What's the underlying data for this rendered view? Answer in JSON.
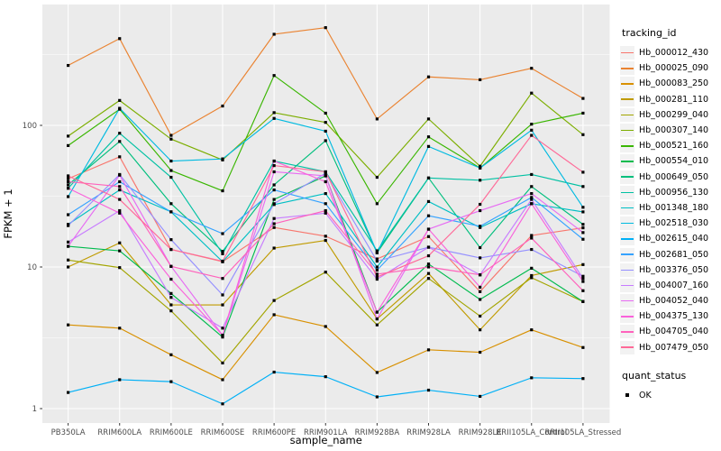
{
  "figure": {
    "y_axis": {
      "title": "FPKM + 1",
      "tick_labels": [
        "1",
        "10",
        "100"
      ]
    },
    "x_axis": {
      "title": "sample_name"
    },
    "legend": {
      "tracking_title": "tracking_id",
      "quant_title": "quant_status",
      "quant_items": [
        {
          "label": "OK",
          "marker": "black-square"
        }
      ]
    },
    "colors": {
      "panel_bg": "#EBEBEB",
      "grid": "#FFFFFF",
      "axis_text": "#4D4D4D",
      "axis_title": "#000000",
      "tick_mark": "#333333",
      "point": "#000000",
      "legend_key_bg": "#F2F2F2"
    }
  },
  "chart_data": {
    "type": "line",
    "title": "",
    "xlabel": "sample_name",
    "ylabel": "FPKM + 1",
    "y_scale": "log10",
    "y_ticks": [
      1,
      10,
      100
    ],
    "y_minor_ticks": [
      3.162,
      31.62,
      316.2
    ],
    "ylim": [
      0.8,
      660
    ],
    "grid": true,
    "legend_position": "right",
    "marker": "black-square",
    "categories": [
      "PB350LA",
      "RRIM600LA",
      "RRIM600LE",
      "RRIM600SE",
      "RRIM600PE",
      "RRIM901LA",
      "RRIM928BA",
      "RRIM928LA",
      "RRIM928LE",
      "RRII105LA_Control",
      "RRII105LA_Stressed"
    ],
    "series": [
      {
        "name": "Hb_000012_430",
        "color": "#F8766D",
        "values": [
          42,
          60,
          13.3,
          10.9,
          19,
          16.5,
          11.4,
          16.4,
          6.7,
          16.7,
          18.9
        ]
      },
      {
        "name": "Hb_000025_090",
        "color": "#EA8331",
        "values": [
          265,
          410,
          85,
          137,
          440,
          490,
          111,
          220,
          210,
          253,
          155
        ]
      },
      {
        "name": "Hb_000083_250",
        "color": "#D89000",
        "values": [
          3.9,
          3.7,
          2.4,
          1.6,
          4.6,
          3.8,
          1.8,
          2.6,
          2.5,
          3.6,
          2.7
        ]
      },
      {
        "name": "Hb_000281_110",
        "color": "#C09B00",
        "values": [
          10,
          14.8,
          5.4,
          5.4,
          13.6,
          15.4,
          4.3,
          9.0,
          3.6,
          8.7,
          10.4
        ]
      },
      {
        "name": "Hb_000299_040",
        "color": "#A3A500",
        "values": [
          11.2,
          9.9,
          4.9,
          2.1,
          5.8,
          9.2,
          3.9,
          8.3,
          4.5,
          8.4,
          5.7
        ]
      },
      {
        "name": "Hb_000307_140",
        "color": "#7CAE00",
        "values": [
          84,
          150,
          80,
          57,
          123,
          105,
          43,
          111,
          51.5,
          169,
          86
        ]
      },
      {
        "name": "Hb_000521_160",
        "color": "#39B600",
        "values": [
          72,
          130,
          48,
          34.5,
          225,
          122,
          28,
          83,
          50,
          102,
          122
        ]
      },
      {
        "name": "Hb_000554_010",
        "color": "#00BB4E",
        "values": [
          14,
          13,
          6.5,
          3.2,
          30,
          44,
          4.8,
          10.5,
          5.9,
          9.8,
          5.7
        ]
      },
      {
        "name": "Hb_000649_050",
        "color": "#00BF7D",
        "values": [
          38,
          77,
          28,
          12.9,
          38,
          78,
          12.6,
          42.5,
          13.7,
          37,
          20
        ]
      },
      {
        "name": "Hb_000956_130",
        "color": "#00C1A3",
        "values": [
          36,
          88,
          43,
          12.4,
          56,
          47,
          13,
          42.5,
          41,
          45,
          37
        ]
      },
      {
        "name": "Hb_001348_180",
        "color": "#00BFC4",
        "values": [
          20,
          35,
          24.5,
          10.9,
          27.6,
          33,
          10,
          29,
          19,
          28,
          24.5
        ]
      },
      {
        "name": "Hb_002518_030",
        "color": "#00BAE0",
        "values": [
          31.4,
          132,
          56,
          58,
          112,
          91,
          12.6,
          71,
          50,
          92.5,
          26.4
        ]
      },
      {
        "name": "Hb_002615_040",
        "color": "#00B0F6",
        "values": [
          1.3,
          1.6,
          1.55,
          1.08,
          1.81,
          1.68,
          1.21,
          1.35,
          1.22,
          1.65,
          1.63
        ]
      },
      {
        "name": "Hb_002681_050",
        "color": "#35A2FF",
        "values": [
          23.4,
          40,
          24.5,
          17.2,
          35,
          28,
          9.5,
          23,
          19.4,
          31,
          15.7
        ]
      },
      {
        "name": "Hb_003376_050",
        "color": "#9590FF",
        "values": [
          19.6,
          45,
          15.6,
          6.35,
          28,
          46,
          11,
          13.8,
          11.6,
          13.3,
          8.6
        ]
      },
      {
        "name": "Hb_004007_160",
        "color": "#C77CFF",
        "values": [
          15,
          25,
          6.1,
          3.7,
          22,
          24,
          8.2,
          13.8,
          8.8,
          30,
          8.3
        ]
      },
      {
        "name": "Hb_004052_040",
        "color": "#E76BF3",
        "values": [
          14,
          44.5,
          10.1,
          3.3,
          47,
          44,
          4.3,
          18.5,
          25,
          33,
          17.5
        ]
      },
      {
        "name": "Hb_004375_130",
        "color": "#FA62DB",
        "values": [
          36,
          24,
          8.2,
          3.3,
          56,
          40,
          4.8,
          18.5,
          7.2,
          28,
          7.9
        ]
      },
      {
        "name": "Hb_004705_040",
        "color": "#FF62BC",
        "values": [
          40,
          37,
          10.1,
          8.3,
          20.2,
          25,
          8.9,
          10,
          8.8,
          16,
          6.8
        ]
      },
      {
        "name": "Hb_007479_050",
        "color": "#FF6A98",
        "values": [
          44,
          30,
          13.3,
          11,
          52,
          47,
          8.5,
          12,
          27.7,
          85,
          46.7
        ]
      }
    ]
  }
}
